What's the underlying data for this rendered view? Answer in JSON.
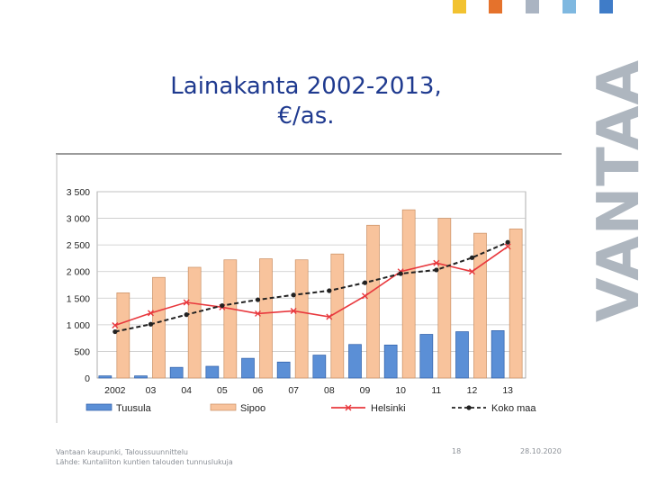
{
  "slide": {
    "title_line1": "Lainakanta 2002-2013,",
    "title_line2": "€/as.",
    "brand_word": "VANTAA",
    "accent_squares": [
      "#f2c230",
      "#e5722c",
      "#aab4c2",
      "#7fb8e0",
      "#3f7cc8"
    ],
    "footer_source_line1": "Vantaan kaupunki, Taloussuunnittelu",
    "footer_source_line2": "Lähde: Kuntaliiton kuntien talouden tunnuslukuja",
    "page_number": "18",
    "date": "28.10.2020"
  },
  "chart_data": {
    "type": "bar+line",
    "title": "Lainakanta 2002-2013, €/as.",
    "categories": [
      "2002",
      "03",
      "04",
      "05",
      "06",
      "07",
      "08",
      "09",
      "10",
      "11",
      "12",
      "13"
    ],
    "ylim": [
      0,
      3500
    ],
    "yticks": [
      0,
      500,
      1000,
      1500,
      2000,
      2500,
      3000,
      3500
    ],
    "ytick_labels": [
      "0",
      "500",
      "1 000",
      "1 500",
      "2 000",
      "2 500",
      "3 000",
      "3 500"
    ],
    "grid": true,
    "legend_position": "bottom",
    "series": [
      {
        "name": "Tuusula",
        "kind": "bar",
        "color": "#5b8fd6",
        "values": [
          40,
          40,
          200,
          220,
          370,
          300,
          430,
          630,
          620,
          820,
          870,
          890
        ]
      },
      {
        "name": "Sipoo",
        "kind": "bar",
        "color": "#f8c39c",
        "values": [
          1600,
          1890,
          2080,
          2220,
          2240,
          2220,
          2330,
          2870,
          3160,
          3000,
          2720,
          2800
        ]
      },
      {
        "name": "Helsinki",
        "kind": "line",
        "color": "#e8383d",
        "marker": "x",
        "values": [
          990,
          1220,
          1420,
          1330,
          1210,
          1260,
          1150,
          1540,
          2000,
          2160,
          2000,
          2470
        ]
      },
      {
        "name": "Koko maa",
        "kind": "line",
        "color": "#222222",
        "marker": "dot",
        "dashed": true,
        "values": [
          870,
          1010,
          1190,
          1360,
          1470,
          1560,
          1640,
          1790,
          1960,
          2030,
          2260,
          2550
        ]
      }
    ]
  }
}
